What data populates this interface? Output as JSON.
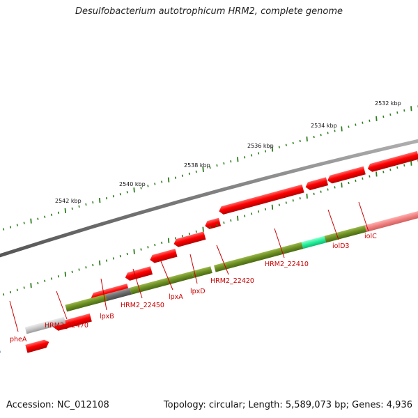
{
  "title": "Desulfobacterium autotrophicum HRM2, complete genome",
  "accession": "Accession: NC_012108",
  "summary": "Topology: circular; Length: 5,589,073 bp; Genes: 4,936",
  "ticks": [
    "2532 kbp",
    "2534 kbp",
    "2536 kbp",
    "2538 kbp",
    "2540 kbp",
    "2542 kbp"
  ],
  "genes": [
    "pheA",
    "HRM2_22470",
    "lpxB",
    "HRM2_22450",
    "lpxA",
    "lpxD",
    "HRM2_22420",
    "HRM2_22410",
    "iolD3",
    "iolC"
  ],
  "colors": {
    "backbone": "#777777",
    "forward_gene": "#ee0000",
    "cds_default": "#6b8e23",
    "tick": "#2e7d1e",
    "label": "#cc0000"
  }
}
